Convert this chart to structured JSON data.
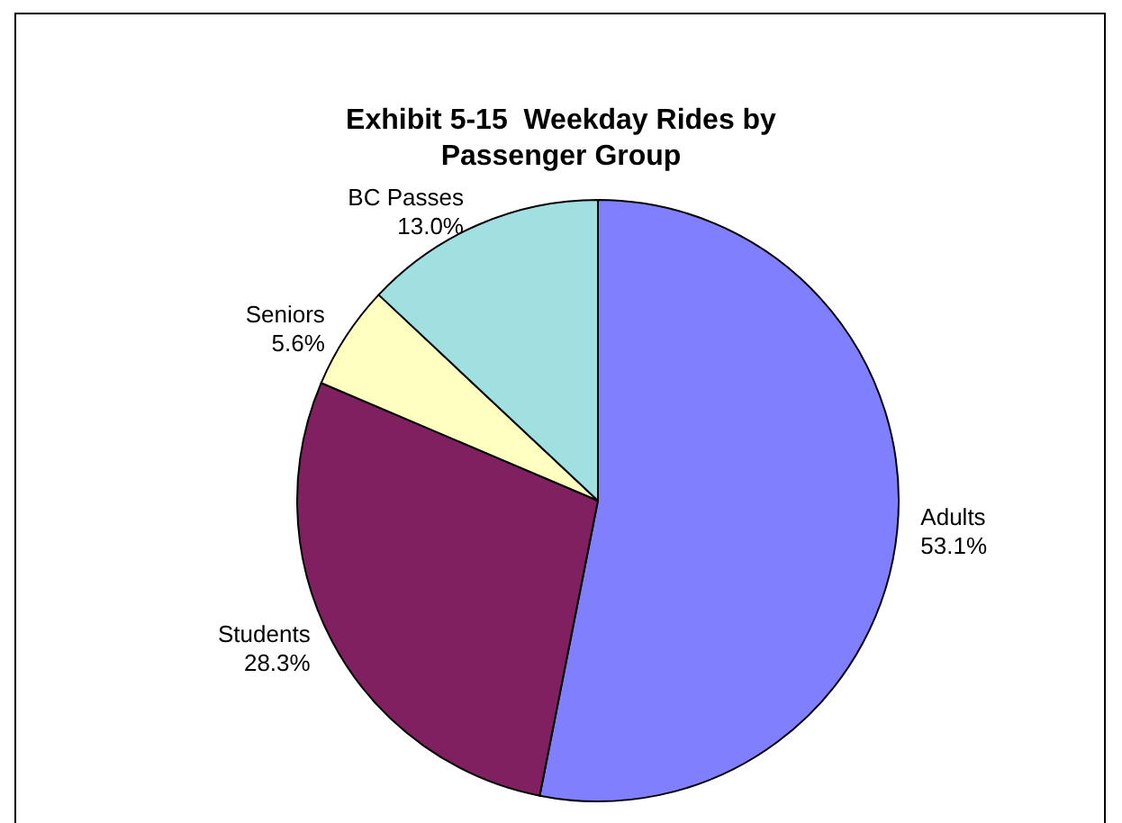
{
  "chart_data": {
    "type": "pie",
    "title": "Exhibit 5-15  Weekday Rides by\nPassenger Group",
    "categories": [
      "Adults",
      "Students",
      "Seniors",
      "BC Passes"
    ],
    "values": [
      53.1,
      28.3,
      5.6,
      13.0
    ],
    "value_labels": [
      "53.1%",
      "28.3%",
      "5.6%",
      "13.0%"
    ],
    "colors": [
      "#8080ff",
      "#802060",
      "#ffffc0",
      "#a0e0e0"
    ],
    "legend": false
  }
}
